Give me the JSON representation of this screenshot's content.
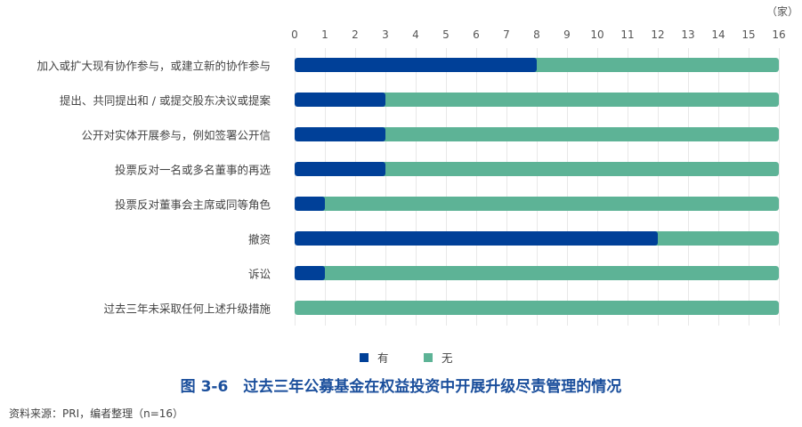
{
  "chart_data": {
    "type": "bar",
    "orientation": "horizontal",
    "stacked": true,
    "title": "图 3-6　过去三年公募基金在权益投资中开展升级尽责管理的情况",
    "unit_label": "（家）",
    "xlabel": "",
    "ylabel": "",
    "xlim": [
      0,
      16
    ],
    "x_ticks": [
      0,
      1,
      2,
      3,
      4,
      5,
      6,
      7,
      8,
      9,
      10,
      11,
      12,
      13,
      14,
      15,
      16
    ],
    "grid": true,
    "legend_position": "bottom",
    "categories": [
      "加入或扩大现有协作参与，或建立新的协作参与",
      "提出、共同提出和 / 或提交股东决议或提案",
      "公开对实体开展参与，例如签署公开信",
      "投票反对一名或多名董事的再选",
      "投票反对董事会主席或同等角色",
      "撤资",
      "诉讼",
      "过去三年未采取任何上述升级措施"
    ],
    "series": [
      {
        "name": "有",
        "color": "#004098",
        "values": [
          8,
          3,
          3,
          3,
          1,
          12,
          1,
          0
        ]
      },
      {
        "name": "无",
        "color": "#5db396",
        "values": [
          8,
          13,
          13,
          13,
          15,
          4,
          15,
          16
        ]
      }
    ],
    "source": "资料来源：PRI，编者整理（n=16）"
  },
  "header": {
    "unit": "（家）"
  },
  "axis": {
    "ticks": [
      "0",
      "1",
      "2",
      "3",
      "4",
      "5",
      "6",
      "7",
      "8",
      "9",
      "10",
      "11",
      "12",
      "13",
      "14",
      "15",
      "16"
    ]
  },
  "rows": [
    {
      "label": "加入或扩大现有协作参与，或建立新的协作参与"
    },
    {
      "label": "提出、共同提出和 / 或提交股东决议或提案"
    },
    {
      "label": "公开对实体开展参与，例如签署公开信"
    },
    {
      "label": "投票反对一名或多名董事的再选"
    },
    {
      "label": "投票反对董事会主席或同等角色"
    },
    {
      "label": "撤资"
    },
    {
      "label": "诉讼"
    },
    {
      "label": "过去三年未采取任何上述升级措施"
    }
  ],
  "legend": {
    "items": [
      {
        "label": "有",
        "color": "#004098"
      },
      {
        "label": "无",
        "color": "#5db396"
      }
    ]
  },
  "caption": {
    "title": "图 3-6　过去三年公募基金在权益投资中开展升级尽责管理的情况",
    "title_color": "#1b4f9c",
    "source": "资料来源：PRI，编者整理（n=16）"
  }
}
